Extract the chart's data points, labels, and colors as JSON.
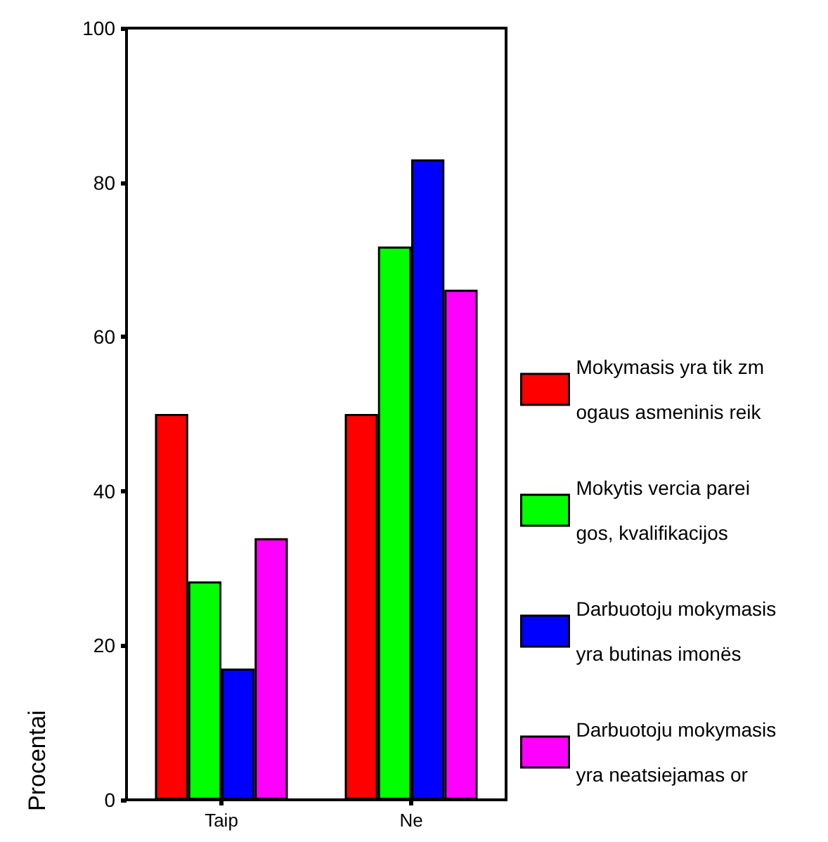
{
  "chart_data": {
    "type": "bar",
    "ylabel": "Procentai",
    "categories": [
      "Taip",
      "Ne"
    ],
    "series": [
      {
        "name": "Mokymasis yra tik zm\nogaus asmeninis reik",
        "color": "#ff0000",
        "values": [
          50,
          50
        ]
      },
      {
        "name": "Mokytis vercia parei\ngos, kvalifikacijos",
        "color": "#00ff00",
        "values": [
          28.3,
          71.7
        ]
      },
      {
        "name": "Darbuotoju mokymasis\nyra butinas imonës",
        "color": "#0000ff",
        "values": [
          17,
          83
        ]
      },
      {
        "name": "Darbuotoju mokymasis\nyra neatsiejamas or",
        "color": "#ff00ff",
        "values": [
          33.9,
          66.1
        ]
      }
    ],
    "ylim": [
      0,
      100
    ],
    "yticks": [
      0,
      20,
      40,
      60,
      80,
      100
    ],
    "grid": false,
    "legend": "right"
  }
}
